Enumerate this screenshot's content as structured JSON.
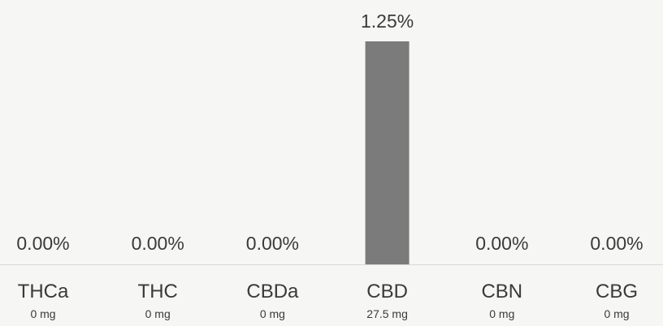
{
  "chart_data": {
    "type": "bar",
    "title": "",
    "xlabel": "",
    "ylabel": "",
    "categories": [
      "THCa",
      "THC",
      "CBDa",
      "CBD",
      "CBN",
      "CBG"
    ],
    "values": [
      0.0,
      0.0,
      0.0,
      1.25,
      0.0,
      0.0
    ],
    "value_labels": [
      "0.00%",
      "0.00%",
      "0.00%",
      "1.25%",
      "0.00%",
      "0.00%"
    ],
    "amounts": [
      "0 mg",
      "0 mg",
      "0 mg",
      "27.5 mg",
      "0 mg",
      "0 mg"
    ],
    "ylim": [
      0,
      1.25
    ],
    "grid": false,
    "legend": "none",
    "colors": {
      "bar": "#7b7b7b",
      "baseline": "#d9d9d9",
      "text": "#3a3a3a"
    }
  }
}
